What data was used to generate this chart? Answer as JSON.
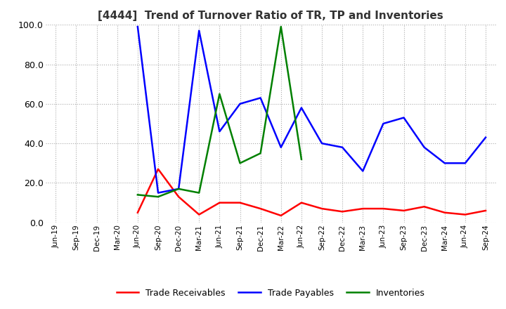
{
  "title": "[4444]  Trend of Turnover Ratio of TR, TP and Inventories",
  "ylim": [
    0,
    100
  ],
  "yticks": [
    0,
    20,
    40,
    60,
    80,
    100
  ],
  "legend": [
    "Trade Receivables",
    "Trade Payables",
    "Inventories"
  ],
  "legend_colors": [
    "#ff0000",
    "#0000ff",
    "#008000"
  ],
  "x_labels": [
    "Jun-19",
    "Sep-19",
    "Dec-19",
    "Mar-20",
    "Jun-20",
    "Sep-20",
    "Dec-20",
    "Mar-21",
    "Jun-21",
    "Sep-21",
    "Dec-21",
    "Mar-22",
    "Jun-22",
    "Sep-22",
    "Dec-22",
    "Mar-23",
    "Jun-23",
    "Sep-23",
    "Dec-23",
    "Mar-24",
    "Jun-24",
    "Sep-24"
  ],
  "trade_receivables": [
    null,
    null,
    null,
    null,
    5.0,
    27.0,
    13.0,
    4.0,
    10.0,
    10.0,
    7.0,
    3.5,
    10.0,
    7.0,
    5.5,
    7.0,
    7.0,
    6.0,
    8.0,
    5.0,
    4.0,
    6.0
  ],
  "trade_payables": [
    null,
    null,
    null,
    null,
    99.0,
    15.0,
    17.0,
    97.0,
    46.0,
    60.0,
    63.0,
    38.0,
    58.0,
    40.0,
    38.0,
    26.0,
    50.0,
    53.0,
    38.0,
    30.0,
    30.0,
    43.0
  ],
  "inventories": [
    null,
    null,
    null,
    null,
    14.0,
    13.0,
    17.0,
    15.0,
    65.0,
    30.0,
    35.0,
    99.0,
    32.0,
    null,
    null,
    null,
    null,
    null,
    null,
    null,
    null,
    null
  ],
  "background_color": "#ffffff",
  "grid_color": "#aaaaaa",
  "line_width": 1.8
}
